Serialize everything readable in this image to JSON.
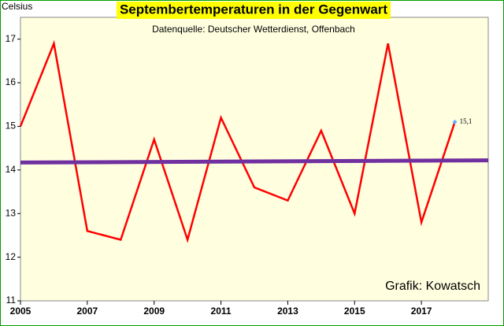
{
  "chart_data": {
    "type": "line",
    "title": "Septembertemperaturen in der Gegenwart",
    "subtitle": "Datenquelle: Deutscher Wetterdienst, Offenbach",
    "y_label": "Celsius",
    "annotation": "Grafik: Kowatsch",
    "xlim": [
      2005,
      2019
    ],
    "xticks": [
      2005,
      2007,
      2009,
      2011,
      2013,
      2015,
      2017
    ],
    "ylim": [
      11,
      17.5
    ],
    "yticks": [
      11,
      12,
      13,
      14,
      15,
      16,
      17
    ],
    "series": [
      {
        "color": "#ff0000",
        "x": [
          2005,
          2006,
          2007,
          2008,
          2009,
          2010,
          2011,
          2012,
          2013,
          2014,
          2015,
          2016,
          2017,
          2018
        ],
        "values": [
          15.0,
          16.9,
          12.6,
          12.4,
          14.7,
          12.4,
          15.2,
          13.6,
          13.3,
          14.9,
          13.0,
          16.9,
          12.8,
          15.1
        ],
        "value_labels": [
          null,
          null,
          null,
          null,
          null,
          null,
          null,
          null,
          null,
          null,
          null,
          null,
          null,
          "15,1"
        ]
      },
      {
        "color": "#7030a0",
        "x": [
          2005,
          2019
        ],
        "values": [
          14.17,
          14.22
        ]
      }
    ]
  }
}
